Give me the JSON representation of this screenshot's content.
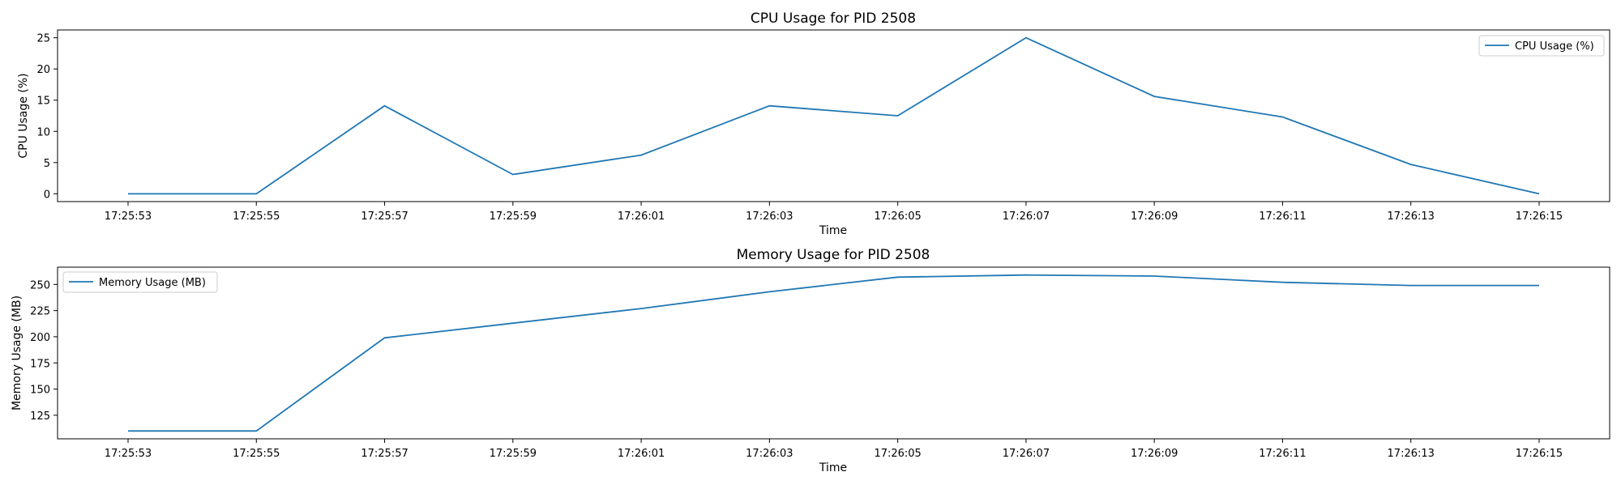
{
  "chart_data": [
    {
      "type": "line",
      "title": "CPU Usage for PID 2508",
      "xlabel": "Time",
      "ylabel": "CPU Usage (%)",
      "categories": [
        "17:25:53",
        "17:25:55",
        "17:25:57",
        "17:25:59",
        "17:26:01",
        "17:26:03",
        "17:26:05",
        "17:26:07",
        "17:26:09",
        "17:26:11",
        "17:26:13",
        "17:26:15"
      ],
      "series": [
        {
          "name": "CPU Usage (%)",
          "color": "#1f77b4",
          "values": [
            0,
            0,
            14.1,
            3.1,
            6.2,
            14.1,
            12.5,
            25.0,
            15.6,
            12.3,
            4.7,
            0
          ]
        }
      ],
      "ylim": [
        -1.25,
        26.25
      ],
      "yticks": [
        0,
        5,
        10,
        15,
        20,
        25
      ],
      "legend": "top-right",
      "grid": false
    },
    {
      "type": "line",
      "title": "Memory Usage for PID 2508",
      "xlabel": "Time",
      "ylabel": "Memory Usage (MB)",
      "categories": [
        "17:25:53",
        "17:25:55",
        "17:25:57",
        "17:25:59",
        "17:26:01",
        "17:26:03",
        "17:26:05",
        "17:26:07",
        "17:26:09",
        "17:26:11",
        "17:26:13",
        "17:26:15"
      ],
      "series": [
        {
          "name": "Memory Usage (MB)",
          "color": "#1f77b4",
          "values": [
            110,
            110,
            199,
            213,
            227,
            243,
            257,
            259,
            258,
            252,
            249,
            249
          ]
        }
      ],
      "ylim": [
        102.5,
        266.5
      ],
      "yticks": [
        125,
        150,
        175,
        200,
        225,
        250
      ],
      "legend": "top-left",
      "grid": false
    }
  ]
}
